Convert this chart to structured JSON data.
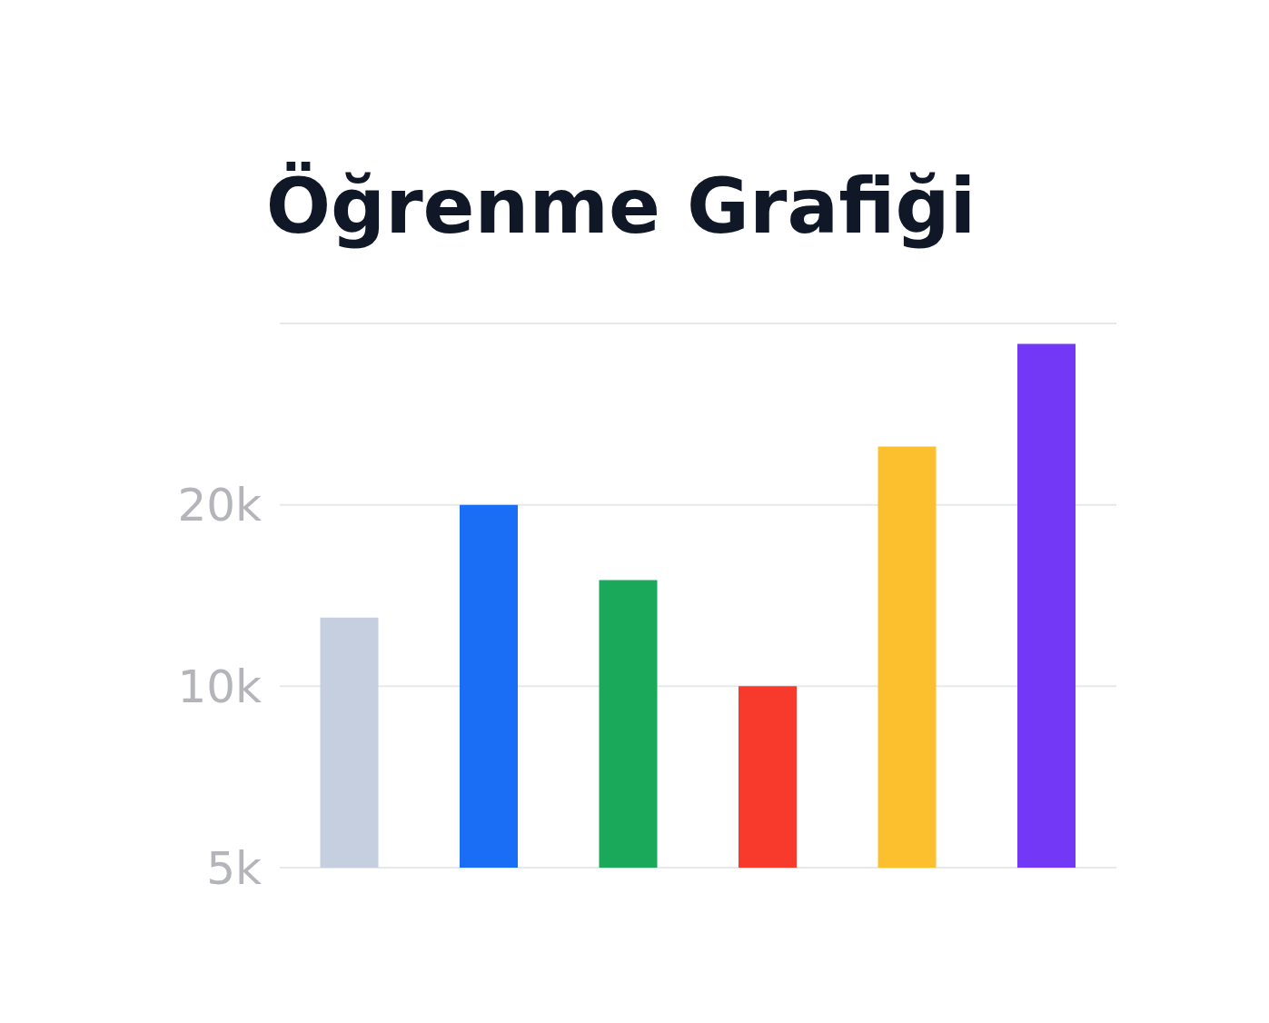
{
  "chart_data": {
    "type": "bar",
    "title": "Öğrenme Grafiği",
    "categories": [
      null,
      null,
      null,
      null,
      null,
      null
    ],
    "values": [
      13000,
      20000,
      15000,
      10000,
      25000,
      37000
    ],
    "colors": [
      "#c5cfdf",
      "#1a6ef5",
      "#1aa85a",
      "#f73a2c",
      "#fcbf2e",
      "#7238f5"
    ],
    "log": true,
    "ylim": [
      5000,
      40000
    ],
    "yticks": [
      {
        "value": 5000,
        "label": "5k"
      },
      {
        "value": 10000,
        "label": "10k"
      },
      {
        "value": 20000,
        "label": "20k"
      },
      {
        "value": 40000,
        "label": null
      }
    ],
    "grid": "y",
    "tick_labels": "y"
  }
}
